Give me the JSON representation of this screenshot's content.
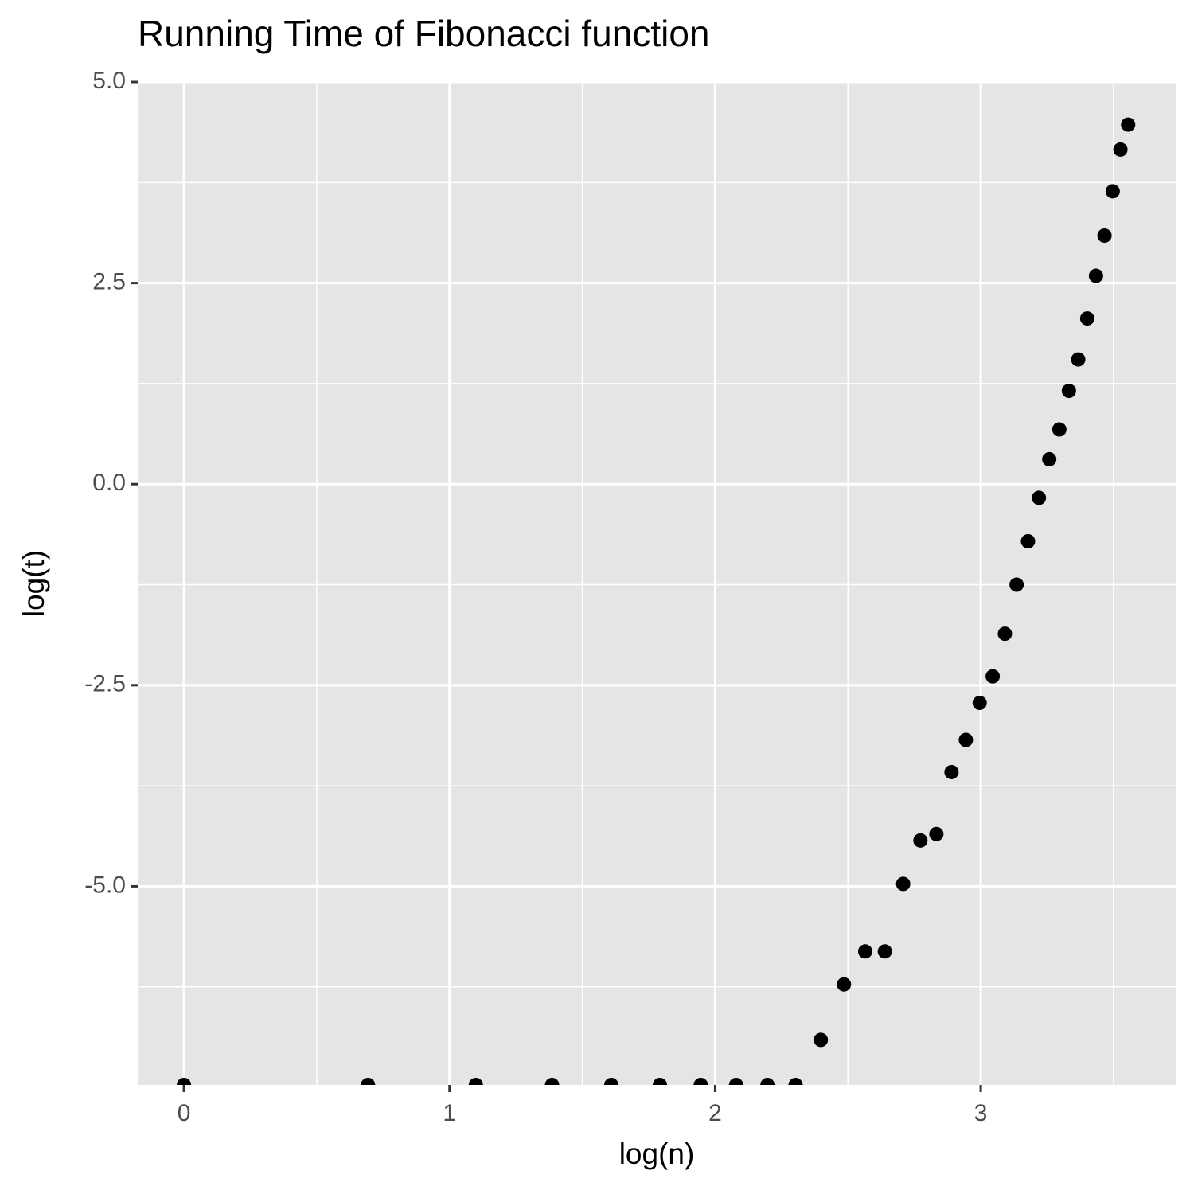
{
  "chart_data": {
    "type": "scatter",
    "title": "Running Time of Fibonacci function",
    "x_label": "log(n)",
    "y_label": "log(t)",
    "x": [
      0,
      0.693,
      1.099,
      1.386,
      1.609,
      1.792,
      1.946,
      2.079,
      2.197,
      2.303,
      2.398,
      2.485,
      2.565,
      2.639,
      2.708,
      2.773,
      2.833,
      2.89,
      2.944,
      2.996,
      3.045,
      3.091,
      3.135,
      3.178,
      3.219,
      3.258,
      3.296,
      3.332,
      3.367,
      3.401,
      3.434,
      3.466,
      3.497,
      3.526,
      3.555
    ],
    "y": [
      -7.47,
      -7.47,
      -7.47,
      -7.47,
      -7.47,
      -7.47,
      -7.47,
      -7.47,
      -7.47,
      -7.47,
      -6.91,
      -6.22,
      -5.81,
      -5.81,
      -4.97,
      -4.43,
      -4.35,
      -3.58,
      -3.18,
      -2.72,
      -2.39,
      -1.86,
      -1.25,
      -0.71,
      -0.17,
      0.31,
      0.68,
      1.16,
      1.55,
      2.06,
      2.59,
      3.09,
      3.64,
      4.16,
      4.47
    ],
    "color": "#000000",
    "xlim": [
      -0.174,
      3.734
    ],
    "xticks": [
      0,
      1,
      2,
      3
    ],
    "ylim": [
      -7.47,
      5.01
    ],
    "yticks": [
      {
        "value": -5,
        "label": "-5.0"
      },
      -2.5,
      {
        "value": 0,
        "label": "0.0"
      },
      2.5,
      {
        "value": 5,
        "label": "5.0"
      }
    ],
    "grid": true
  }
}
